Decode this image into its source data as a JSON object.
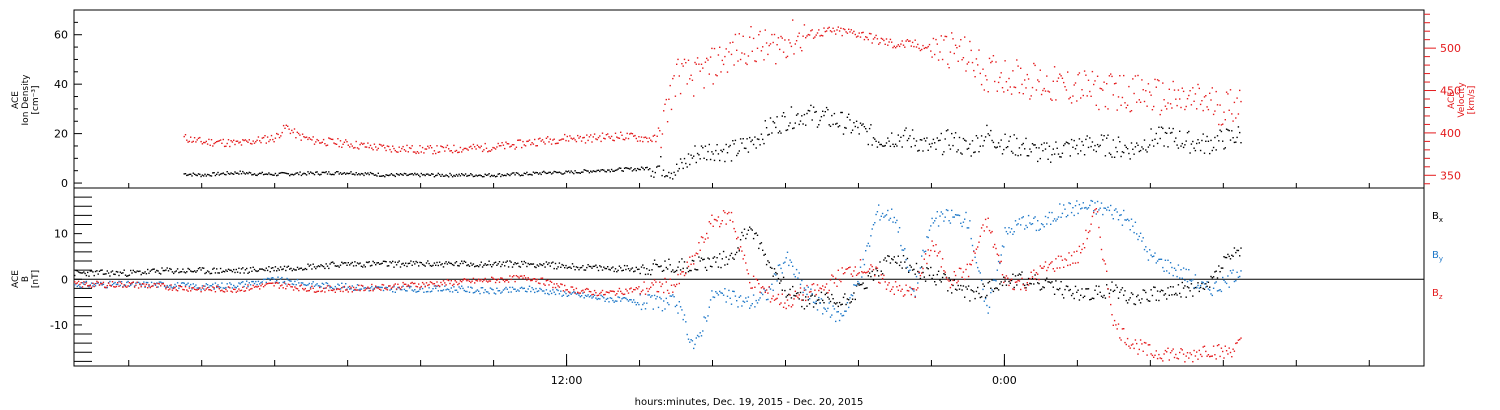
{
  "chart_data": [
    {
      "type": "scatter",
      "panel": "top",
      "ylabel_left": [
        "ACE",
        "Ion Density",
        "[cm⁻³]"
      ],
      "ylabel_right": [
        "ACE",
        "Velocity",
        "[km/s]"
      ],
      "ylim_left": [
        -2,
        70
      ],
      "ylim_right": [
        335,
        545
      ],
      "yticks_left": [
        "0",
        "20",
        "40",
        "60"
      ],
      "yticks_left_values": [
        0,
        20,
        40,
        60
      ],
      "yticks_right": [
        "350",
        "400",
        "450",
        "500"
      ],
      "yticks_right_values": [
        350,
        400,
        450,
        500
      ],
      "series": [
        {
          "name": "",
          "axis": "left",
          "color": "#000000",
          "x": [
            1.5,
            2,
            2.5,
            3,
            3.5,
            4,
            5,
            6,
            7,
            8,
            9,
            10,
            11,
            11.5,
            12,
            12.5,
            13,
            14,
            14.3,
            14.6,
            15,
            15.5,
            16,
            16.5,
            17,
            17.5,
            18,
            18.5,
            19,
            19.5,
            20,
            20.5,
            21,
            21.5,
            22,
            22.5,
            23,
            23.5,
            24,
            24.5,
            25,
            25.5,
            26,
            26.5,
            27,
            27.5,
            28,
            28.5,
            29,
            29.5,
            30,
            30.5
          ],
          "y": [
            4,
            3.5,
            4,
            4.5,
            4,
            3.8,
            4.2,
            4.5,
            3.5,
            3.5,
            3.5,
            3.5,
            4,
            4.5,
            4.5,
            5,
            5.5,
            6,
            6.5,
            7,
            5,
            12,
            14,
            13,
            16,
            22,
            26,
            28,
            27,
            25,
            22,
            18,
            19,
            18,
            14,
            18,
            14,
            20,
            16,
            15,
            12,
            14,
            15,
            16,
            15,
            14,
            18,
            19,
            17,
            16,
            18,
            20
          ]
        },
        {
          "name": "",
          "axis": "right",
          "color": "#e41a1c",
          "x": [
            1.5,
            2,
            2.5,
            3,
            3.5,
            4,
            4.3,
            4.6,
            5,
            5.5,
            6,
            6.5,
            7,
            7.5,
            8,
            8.5,
            9,
            9.5,
            10,
            10.5,
            11,
            11.5,
            12,
            12.5,
            13,
            13.5,
            14,
            14.5,
            15,
            15.5,
            16,
            16.5,
            17,
            17.5,
            18,
            18.5,
            19,
            19.5,
            20,
            20.5,
            21,
            21.5,
            22,
            22.5,
            23,
            23.5,
            24,
            24.5,
            25,
            25.5,
            26,
            26.5,
            27,
            27.5,
            28,
            28.5,
            29,
            29.5,
            30,
            30.5
          ],
          "y": [
            395,
            390,
            390,
            388,
            392,
            395,
            408,
            398,
            392,
            390,
            388,
            385,
            383,
            382,
            381,
            381,
            382,
            383,
            384,
            386,
            390,
            392,
            395,
            394,
            396,
            397,
            395,
            393,
            470,
            465,
            480,
            495,
            505,
            500,
            510,
            515,
            520,
            520,
            518,
            510,
            505,
            505,
            500,
            500,
            490,
            470,
            470,
            465,
            460,
            455,
            455,
            450,
            450,
            448,
            445,
            440,
            438,
            438,
            430,
            440
          ]
        }
      ]
    },
    {
      "type": "scatter",
      "panel": "bottom",
      "ylabel_left": [
        "ACE",
        "B",
        "[nT]"
      ],
      "ylim": [
        -19,
        20
      ],
      "yticks": [
        "-10",
        "0",
        "10"
      ],
      "yticks_values": [
        -10,
        0,
        10
      ],
      "zero_line": true,
      "legend": [
        "Bx",
        "By",
        "Bz"
      ],
      "legend_placement": "right",
      "xlabel": "hours:minutes, Dec. 19, 2015 - Dec. 20, 2015",
      "xticks": [
        "12:00",
        "0:00"
      ],
      "xticks_values": [
        12,
        24
      ],
      "xlim": [
        -1.5,
        35.5
      ],
      "series": [
        {
          "name": "Bx",
          "color": "#000000",
          "x": [
            -1.5,
            0,
            1,
            2,
            3,
            4,
            5,
            6,
            7,
            8,
            9,
            10,
            11,
            12,
            13,
            14,
            15,
            15.5,
            16,
            16.5,
            17,
            17.5,
            18,
            18.5,
            19,
            19.5,
            20,
            20.5,
            21,
            21.5,
            22,
            22.5,
            23,
            23.5,
            24,
            24.5,
            25,
            25.5,
            26,
            26.5,
            27,
            27.5,
            28,
            28.5,
            29,
            29.5,
            30,
            30.5
          ],
          "y": [
            1.5,
            1.5,
            2,
            2,
            2,
            2.5,
            3,
            3.5,
            3.5,
            3.5,
            3.5,
            3.5,
            3.5,
            3,
            2.5,
            2.5,
            3,
            3.5,
            4,
            5,
            12,
            4,
            -2,
            -5,
            -4,
            -5,
            -2,
            2,
            5,
            2,
            1,
            -1,
            -3,
            -2,
            0,
            0,
            -1,
            -2,
            -3,
            -3,
            -2,
            -4,
            -3,
            -3,
            -2,
            -2,
            4,
            7
          ]
        },
        {
          "name": "By",
          "color": "#1f78c8",
          "x": [
            -1.5,
            0,
            1,
            2,
            3,
            4,
            5,
            6,
            7,
            8,
            9,
            10,
            11,
            12,
            13,
            14,
            15,
            15.5,
            16,
            16.5,
            17,
            17.5,
            18,
            18.5,
            19,
            19.5,
            20,
            20.5,
            21,
            21.5,
            22,
            22.5,
            23,
            23.5,
            24,
            24.5,
            25,
            25.5,
            26,
            26.5,
            27,
            27.5,
            28,
            28.5,
            29,
            29.5,
            30,
            30.5
          ],
          "y": [
            -1,
            -1,
            -1,
            -1.5,
            -1,
            0,
            -1,
            -1.5,
            -2,
            -2,
            -2,
            -2.5,
            -2,
            -3,
            -4,
            -5,
            -5,
            -15,
            -3,
            -4,
            -5,
            -3,
            5,
            -2,
            -6,
            -8,
            0,
            15,
            14,
            -3,
            13,
            14,
            13,
            -7,
            10,
            13,
            12,
            15,
            16,
            16,
            15,
            12,
            5,
            3,
            1,
            -2,
            -1,
            3
          ]
        },
        {
          "name": "Bz",
          "color": "#e41a1c",
          "x": [
            -1.5,
            0,
            1,
            2,
            3,
            4,
            5,
            6,
            7,
            8,
            9,
            10,
            11,
            12,
            13,
            14,
            15,
            15.5,
            16,
            16.5,
            17,
            17.5,
            18,
            18.5,
            19,
            19.5,
            20,
            20.5,
            21,
            21.5,
            22,
            22.5,
            23,
            23.5,
            24,
            24.5,
            25,
            25.5,
            26,
            26.5,
            27,
            27.5,
            28,
            28.5,
            29,
            29.5,
            30,
            30.5
          ],
          "y": [
            -1,
            -1,
            -1.5,
            -2,
            -2,
            -1,
            -2,
            -2,
            -1.5,
            -1,
            -0.5,
            0,
            0.5,
            -2,
            -3,
            -2,
            -1,
            5,
            13,
            14,
            0,
            -3,
            -5,
            -3,
            -2,
            1,
            3,
            1,
            -2,
            -3,
            8,
            0,
            2,
            13,
            0,
            -1,
            2,
            4,
            5,
            15,
            -10,
            -14,
            -16,
            -16,
            -17,
            -15,
            -16,
            -14
          ]
        }
      ]
    }
  ]
}
